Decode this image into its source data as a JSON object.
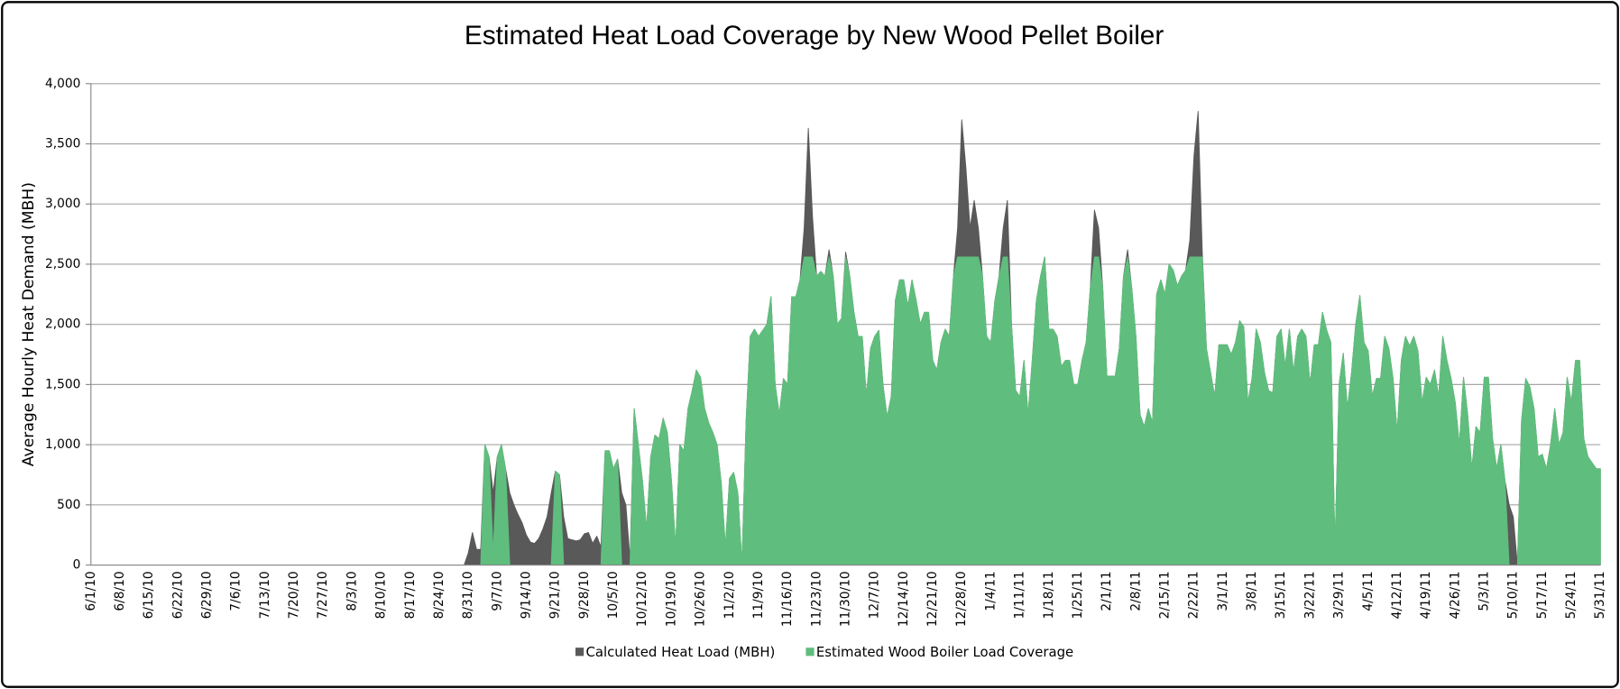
{
  "chart_data": {
    "type": "area",
    "title": "Estimated Heat Load Coverage by New Wood Pellet Boiler",
    "y_label": "Average Hourly Heat Demand (MBH)",
    "ylim": [
      0,
      4000
    ],
    "yticks": [
      0,
      500,
      {
        "value": 1000,
        "label": "1,000"
      },
      {
        "value": 1500,
        "label": "1,500"
      },
      {
        "value": 2000,
        "label": "2,000"
      },
      {
        "value": 2500,
        "label": "2,500"
      },
      {
        "value": 3000,
        "label": "3,000"
      },
      {
        "value": 3500,
        "label": "3,500"
      },
      {
        "value": 4000,
        "label": "4,000"
      }
    ],
    "grid": true,
    "legend": "bottom",
    "categories": [
      "6/1/10",
      null,
      null,
      null,
      null,
      null,
      null,
      "6/8/10",
      null,
      null,
      null,
      null,
      null,
      null,
      "6/15/10",
      null,
      null,
      null,
      null,
      null,
      null,
      "6/22/10",
      null,
      null,
      null,
      null,
      null,
      null,
      "6/29/10",
      null,
      null,
      null,
      null,
      null,
      null,
      "7/6/10",
      null,
      null,
      null,
      null,
      null,
      null,
      "7/13/10",
      null,
      null,
      null,
      null,
      null,
      null,
      "7/20/10",
      null,
      null,
      null,
      null,
      null,
      null,
      "7/27/10",
      null,
      null,
      null,
      null,
      null,
      null,
      "8/3/10",
      null,
      null,
      null,
      null,
      null,
      null,
      "8/10/10",
      null,
      null,
      null,
      null,
      null,
      null,
      "8/17/10",
      null,
      null,
      null,
      null,
      null,
      null,
      "8/24/10",
      null,
      null,
      null,
      null,
      null,
      null,
      "8/31/10",
      null,
      null,
      null,
      null,
      null,
      null,
      "9/7/10",
      null,
      null,
      null,
      null,
      null,
      null,
      "9/14/10",
      null,
      null,
      null,
      null,
      null,
      null,
      "9/21/10",
      null,
      null,
      null,
      null,
      null,
      null,
      "9/28/10",
      null,
      null,
      null,
      null,
      null,
      null,
      "10/5/10",
      null,
      null,
      null,
      null,
      null,
      null,
      "10/12/10",
      null,
      null,
      null,
      null,
      null,
      null,
      "10/19/10",
      null,
      null,
      null,
      null,
      null,
      null,
      "10/26/10",
      null,
      null,
      null,
      null,
      null,
      null,
      "11/2/10",
      null,
      null,
      null,
      null,
      null,
      null,
      "11/9/10",
      null,
      null,
      null,
      null,
      null,
      null,
      "11/16/10",
      null,
      null,
      null,
      null,
      null,
      null,
      "11/23/10",
      null,
      null,
      null,
      null,
      null,
      null,
      "11/30/10",
      null,
      null,
      null,
      null,
      null,
      null,
      "12/7/10",
      null,
      null,
      null,
      null,
      null,
      null,
      "12/14/10",
      null,
      null,
      null,
      null,
      null,
      null,
      "12/21/10",
      null,
      null,
      null,
      null,
      null,
      null,
      "12/28/10",
      null,
      null,
      null,
      null,
      null,
      null,
      "1/4/11",
      null,
      null,
      null,
      null,
      null,
      null,
      "1/11/11",
      null,
      null,
      null,
      null,
      null,
      null,
      "1/18/11",
      null,
      null,
      null,
      null,
      null,
      null,
      "1/25/11",
      null,
      null,
      null,
      null,
      null,
      null,
      "2/1/11",
      null,
      null,
      null,
      null,
      null,
      null,
      "2/8/11",
      null,
      null,
      null,
      null,
      null,
      null,
      "2/15/11",
      null,
      null,
      null,
      null,
      null,
      null,
      "2/22/11",
      null,
      null,
      null,
      null,
      null,
      null,
      "3/1/11",
      null,
      null,
      null,
      null,
      null,
      null,
      "3/8/11",
      null,
      null,
      null,
      null,
      null,
      null,
      "3/15/11",
      null,
      null,
      null,
      null,
      null,
      null,
      "3/22/11",
      null,
      null,
      null,
      null,
      null,
      null,
      "3/29/11",
      null,
      null,
      null,
      null,
      null,
      null,
      "4/5/11",
      null,
      null,
      null,
      null,
      null,
      null,
      "4/12/11",
      null,
      null,
      null,
      null,
      null,
      null,
      "4/19/11",
      null,
      null,
      null,
      null,
      null,
      null,
      "4/26/11",
      null,
      null,
      null,
      null,
      null,
      null,
      "5/3/11",
      null,
      null,
      null,
      null,
      null,
      null,
      "5/10/11",
      null,
      null,
      null,
      null,
      null,
      null,
      "5/17/11",
      null,
      null,
      null,
      null,
      null,
      null,
      "5/24/11",
      null,
      null,
      null,
      null,
      null,
      null,
      "5/31/11"
    ],
    "series": [
      {
        "name": "Calculated Heat Load (MBH)",
        "color": "#595959",
        "values": [
          0,
          0,
          0,
          0,
          0,
          0,
          0,
          0,
          0,
          0,
          0,
          0,
          0,
          0,
          0,
          0,
          0,
          0,
          0,
          0,
          0,
          0,
          0,
          0,
          0,
          0,
          0,
          0,
          0,
          0,
          0,
          0,
          0,
          0,
          0,
          0,
          0,
          0,
          0,
          0,
          0,
          0,
          0,
          0,
          0,
          0,
          0,
          0,
          0,
          0,
          0,
          0,
          0,
          0,
          0,
          0,
          0,
          0,
          0,
          0,
          0,
          0,
          0,
          0,
          0,
          0,
          0,
          0,
          0,
          0,
          0,
          0,
          0,
          0,
          0,
          0,
          0,
          0,
          0,
          0,
          0,
          0,
          0,
          0,
          0,
          0,
          0,
          0,
          0,
          0,
          0,
          100,
          270,
          130,
          130,
          1000,
          900,
          600,
          900,
          1000,
          800,
          600,
          500,
          420,
          350,
          250,
          190,
          180,
          220,
          300,
          400,
          600,
          780,
          750,
          400,
          220,
          210,
          200,
          210,
          260,
          270,
          180,
          240,
          150,
          950,
          950,
          800,
          880,
          600,
          500,
          50,
          1300,
          1000,
          700,
          300,
          900,
          1080,
          1050,
          1220,
          1100,
          700,
          150,
          1000,
          950,
          1300,
          1450,
          1620,
          1560,
          1300,
          1180,
          1100,
          1000,
          680,
          150,
          720,
          770,
          600,
          0,
          1200,
          1900,
          1960,
          1900,
          1950,
          2000,
          2230,
          1500,
          1250,
          1550,
          1500,
          2230,
          2230,
          2370,
          2800,
          3630,
          2900,
          2400,
          2440,
          2400,
          2620,
          2400,
          2000,
          2050,
          2600,
          2400,
          2100,
          1900,
          1900,
          1400,
          1800,
          1900,
          1950,
          1500,
          1230,
          1400,
          2200,
          2370,
          2370,
          2150,
          2370,
          2200,
          2000,
          2100,
          2100,
          1700,
          1620,
          1850,
          1960,
          1900,
          2400,
          2800,
          3700,
          3300,
          2800,
          3030,
          2800,
          2400,
          1900,
          1850,
          2200,
          2400,
          2800,
          3030,
          2000,
          1450,
          1400,
          1700,
          1250,
          1700,
          2200,
          2400,
          2560,
          1960,
          1960,
          1900,
          1650,
          1700,
          1700,
          1500,
          1500,
          1700,
          1850,
          2300,
          2950,
          2800,
          2300,
          1570,
          1570,
          1570,
          1800,
          2400,
          2620,
          2300,
          1900,
          1250,
          1150,
          1300,
          1180,
          2250,
          2370,
          2250,
          2500,
          2450,
          2320,
          2400,
          2450,
          2700,
          3400,
          3770,
          2600,
          1800,
          1600,
          1400,
          1830,
          1830,
          1830,
          1750,
          1850,
          2030,
          1980,
          1350,
          1550,
          1960,
          1850,
          1600,
          1450,
          1430,
          1900,
          1960,
          1650,
          1960,
          1600,
          1900,
          1960,
          1900,
          1500,
          1830,
          1830,
          2100,
          1950,
          1850,
          130,
          1500,
          1760,
          1300,
          1600,
          2000,
          2240,
          1850,
          1780,
          1400,
          1550,
          1550,
          1900,
          1800,
          1550,
          1100,
          1700,
          1900,
          1820,
          1900,
          1780,
          1350,
          1560,
          1500,
          1620,
          1400,
          1900,
          1700,
          1550,
          1350,
          1000,
          1560,
          1250,
          800,
          1150,
          1100,
          1560,
          1560,
          1050,
          800,
          1000,
          700,
          500,
          400,
          0,
          1200,
          1550,
          1480,
          1300,
          900,
          920,
          800,
          1000,
          1300,
          1000,
          1100,
          1560,
          1350,
          1700,
          1700,
          1050,
          900,
          850,
          800,
          800
        ]
      },
      {
        "name": "Estimated Wood Boiler Load Coverage",
        "color": "#5fbe7d",
        "values": [
          0,
          0,
          0,
          0,
          0,
          0,
          0,
          0,
          0,
          0,
          0,
          0,
          0,
          0,
          0,
          0,
          0,
          0,
          0,
          0,
          0,
          0,
          0,
          0,
          0,
          0,
          0,
          0,
          0,
          0,
          0,
          0,
          0,
          0,
          0,
          0,
          0,
          0,
          0,
          0,
          0,
          0,
          0,
          0,
          0,
          0,
          0,
          0,
          0,
          0,
          0,
          0,
          0,
          0,
          0,
          0,
          0,
          0,
          0,
          0,
          0,
          0,
          0,
          0,
          0,
          0,
          0,
          0,
          0,
          0,
          0,
          0,
          0,
          0,
          0,
          0,
          0,
          0,
          0,
          0,
          0,
          0,
          0,
          0,
          0,
          0,
          0,
          0,
          0,
          0,
          0,
          0,
          0,
          0,
          0,
          1000,
          900,
          100,
          900,
          1000,
          800,
          0,
          0,
          0,
          0,
          0,
          0,
          0,
          0,
          0,
          0,
          0,
          780,
          750,
          0,
          0,
          0,
          0,
          0,
          0,
          0,
          0,
          0,
          0,
          950,
          950,
          800,
          880,
          0,
          0,
          0,
          1300,
          1000,
          700,
          300,
          900,
          1080,
          1050,
          1220,
          1100,
          700,
          150,
          1000,
          950,
          1300,
          1450,
          1620,
          1560,
          1300,
          1180,
          1100,
          1000,
          680,
          150,
          720,
          770,
          600,
          0,
          1200,
          1900,
          1960,
          1900,
          1950,
          2000,
          2230,
          1500,
          1250,
          1550,
          1500,
          2230,
          2230,
          2370,
          2560,
          2560,
          2560,
          2400,
          2440,
          2400,
          2560,
          2400,
          2000,
          2050,
          2560,
          2400,
          2100,
          1900,
          1900,
          1400,
          1800,
          1900,
          1950,
          1500,
          1230,
          1400,
          2200,
          2370,
          2370,
          2150,
          2370,
          2200,
          2000,
          2100,
          2100,
          1700,
          1620,
          1850,
          1960,
          1900,
          2400,
          2560,
          2560,
          2560,
          2560,
          2560,
          2560,
          2400,
          1900,
          1850,
          2200,
          2400,
          2560,
          2560,
          2000,
          1450,
          1400,
          1700,
          1250,
          1700,
          2200,
          2400,
          2560,
          1960,
          1960,
          1900,
          1650,
          1700,
          1700,
          1500,
          1500,
          1700,
          1850,
          2300,
          2560,
          2560,
          2300,
          1570,
          1570,
          1570,
          1800,
          2400,
          2560,
          2300,
          1900,
          1250,
          1150,
          1300,
          1180,
          2250,
          2370,
          2250,
          2500,
          2450,
          2320,
          2400,
          2450,
          2560,
          2560,
          2560,
          2560,
          1800,
          1600,
          1400,
          1830,
          1830,
          1830,
          1750,
          1850,
          2030,
          1980,
          1350,
          1550,
          1960,
          1850,
          1600,
          1450,
          1430,
          1900,
          1960,
          1650,
          1960,
          1600,
          1900,
          1960,
          1900,
          1500,
          1830,
          1830,
          2100,
          1950,
          1850,
          130,
          1500,
          1760,
          1300,
          1600,
          2000,
          2240,
          1850,
          1780,
          1400,
          1550,
          1550,
          1900,
          1800,
          1550,
          1100,
          1700,
          1900,
          1820,
          1900,
          1780,
          1350,
          1560,
          1500,
          1620,
          1400,
          1900,
          1700,
          1550,
          1350,
          1000,
          1560,
          1250,
          800,
          1150,
          1100,
          1560,
          1560,
          1050,
          800,
          1000,
          700,
          0,
          0,
          0,
          1200,
          1550,
          1480,
          1300,
          900,
          920,
          800,
          1000,
          1300,
          1000,
          1100,
          1560,
          1350,
          1700,
          1700,
          1050,
          900,
          850,
          800,
          800
        ]
      }
    ]
  }
}
